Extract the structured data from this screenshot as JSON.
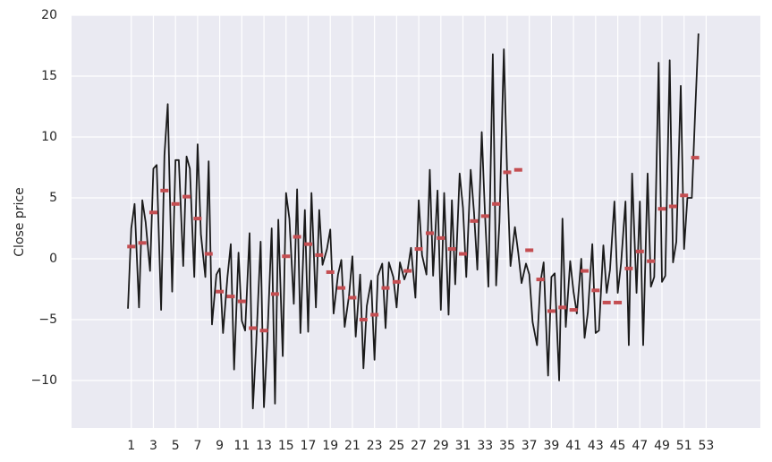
{
  "chart_data": {
    "type": "line",
    "y_label": "Close price",
    "xlim": [
      -4.4,
      57.9
    ],
    "ylim": [
      -13.9,
      20
    ],
    "xticks": [
      1,
      3,
      5,
      7,
      9,
      11,
      13,
      15,
      17,
      19,
      21,
      23,
      25,
      27,
      29,
      31,
      33,
      35,
      37,
      39,
      41,
      43,
      45,
      47,
      49,
      51,
      53
    ],
    "yticks": [
      {
        "value": -10,
        "label": "−10"
      },
      {
        "value": -5,
        "label": "−5"
      },
      0,
      5,
      10,
      15,
      20
    ],
    "grid": true,
    "background": "#eaeaf2",
    "series": [
      {
        "color": "#1a1a1a",
        "style": "line",
        "x": [
          0.7,
          1,
          1.3,
          1.7,
          2,
          2.3,
          2.7,
          3,
          3.3,
          3.7,
          4,
          4.3,
          4.7,
          5,
          5.3,
          5.7,
          6,
          6.3,
          6.7,
          7,
          7.3,
          7.7,
          8,
          8.3,
          8.7,
          9,
          9.3,
          9.7,
          10,
          10.3,
          10.7,
          11,
          11.3,
          11.7,
          12,
          12.3,
          12.7,
          13,
          13.3,
          13.7,
          14,
          14.3,
          14.7,
          15,
          15.3,
          15.7,
          16,
          16.3,
          16.7,
          17,
          17.3,
          17.7,
          18,
          18.3,
          18.7,
          19,
          19.3,
          19.7,
          20,
          20.3,
          20.7,
          21,
          21.3,
          21.7,
          22,
          22.3,
          22.7,
          23,
          23.3,
          23.7,
          24,
          24.3,
          24.7,
          25,
          25.3,
          25.7,
          26,
          26.3,
          26.7,
          27,
          27.3,
          27.7,
          28,
          28.3,
          28.7,
          29,
          29.3,
          29.7,
          30,
          30.3,
          30.7,
          31,
          31.3,
          31.7,
          32,
          32.3,
          32.7,
          33,
          33.3,
          33.7,
          34,
          34.3,
          34.7,
          35,
          35.3,
          35.7,
          36,
          36.3,
          36.7,
          37,
          37.3,
          37.7,
          38,
          38.3,
          38.7,
          39,
          39.3,
          39.7,
          40,
          40.3,
          40.7,
          41,
          41.3,
          41.7,
          42,
          42.3,
          42.7,
          43,
          43.3,
          43.7,
          44,
          44.3,
          44.7,
          45,
          45.3,
          45.7,
          46,
          46.3,
          46.7,
          47,
          47.3,
          47.7,
          48,
          48.3,
          48.7,
          49,
          49.3,
          49.7,
          50,
          50.3,
          50.7,
          51,
          51.3,
          51.7,
          52,
          52.3
        ],
        "values": [
          -4.1,
          2.5,
          4.5,
          -4.0,
          4.8,
          3.0,
          -1.0,
          7.4,
          7.7,
          -4.2,
          8.5,
          12.7,
          -2.7,
          8.1,
          8.1,
          -0.6,
          8.4,
          7.4,
          -1.5,
          9.4,
          2.0,
          -1.5,
          8.0,
          -5.4,
          -1.3,
          -0.8,
          -6.1,
          -1.5,
          1.2,
          -9.1,
          0.5,
          -5.1,
          -5.9,
          2.1,
          -12.3,
          -7.0,
          1.4,
          -12.2,
          -6.8,
          2.5,
          -11.9,
          3.2,
          -8.0,
          5.4,
          3.3,
          -3.7,
          5.7,
          -6.1,
          4.0,
          -6.0,
          5.4,
          -4.0,
          4.0,
          -0.5,
          0.8,
          2.4,
          -4.5,
          -1.3,
          -0.1,
          -5.6,
          -3.0,
          0.2,
          -6.4,
          -1.3,
          -9.0,
          -3.9,
          -1.8,
          -8.3,
          -1.4,
          -0.4,
          -5.7,
          -0.3,
          -1.5,
          -4.0,
          -0.3,
          -1.7,
          -0.9,
          0.9,
          -3.2,
          4.8,
          0.3,
          -1.3,
          7.3,
          -1.4,
          5.6,
          -4.2,
          5.4,
          -4.6,
          4.8,
          -2.1,
          7.0,
          4.2,
          -1.5,
          7.3,
          3.8,
          -0.9,
          10.4,
          3.5,
          -2.3,
          16.8,
          -2.2,
          3.0,
          17.2,
          6.8,
          -0.6,
          2.6,
          0.5,
          -2.0,
          -0.4,
          -1.3,
          -5.2,
          -7.1,
          -2.0,
          -0.3,
          -9.6,
          -1.5,
          -1.2,
          -10.0,
          3.3,
          -5.6,
          -0.2,
          -2.7,
          -4.5,
          0,
          -6.5,
          -4.4,
          1.2,
          -6.1,
          -5.9,
          1.1,
          -2.8,
          -0.9,
          4.7,
          -2.8,
          -0.4,
          4.7,
          -7.1,
          7.0,
          -2.8,
          4.7,
          -7.1,
          7.0,
          -2.3,
          -1.5,
          16.1,
          -1.9,
          -1.4,
          16.3,
          -0.3,
          1.4,
          14.2,
          0.8,
          5.0,
          5.0,
          12.0,
          18.5
        ]
      },
      {
        "color": "#c44e52",
        "style": "marker",
        "x": [
          1,
          2,
          3,
          4,
          5,
          6,
          7,
          8,
          9,
          10,
          11,
          12,
          13,
          14,
          15,
          16,
          17,
          18,
          19,
          20,
          21,
          22,
          23,
          24,
          25,
          26,
          27,
          28,
          29,
          30,
          31,
          32,
          33,
          34,
          35,
          36,
          37,
          38,
          39,
          40,
          41,
          42,
          43,
          44,
          45,
          46,
          47,
          48,
          49,
          50,
          51,
          52
        ],
        "values": [
          1.0,
          1.3,
          3.8,
          5.6,
          4.5,
          5.1,
          3.3,
          0.4,
          -2.7,
          -3.1,
          -3.5,
          -5.7,
          -5.9,
          -2.9,
          0.2,
          1.8,
          1.2,
          0.3,
          -1.1,
          -2.4,
          -3.2,
          -5.0,
          -4.6,
          -2.4,
          -1.9,
          -1.0,
          0.8,
          2.1,
          1.7,
          0.8,
          0.4,
          3.1,
          3.5,
          4.5,
          7.1,
          7.3,
          0.7,
          -1.7,
          -4.3,
          -4.0,
          -4.2,
          -1.0,
          -2.6,
          -3.6,
          -3.6,
          -0.8,
          0.6,
          -0.2,
          4.1,
          4.3,
          5.2,
          8.3
        ]
      }
    ]
  }
}
